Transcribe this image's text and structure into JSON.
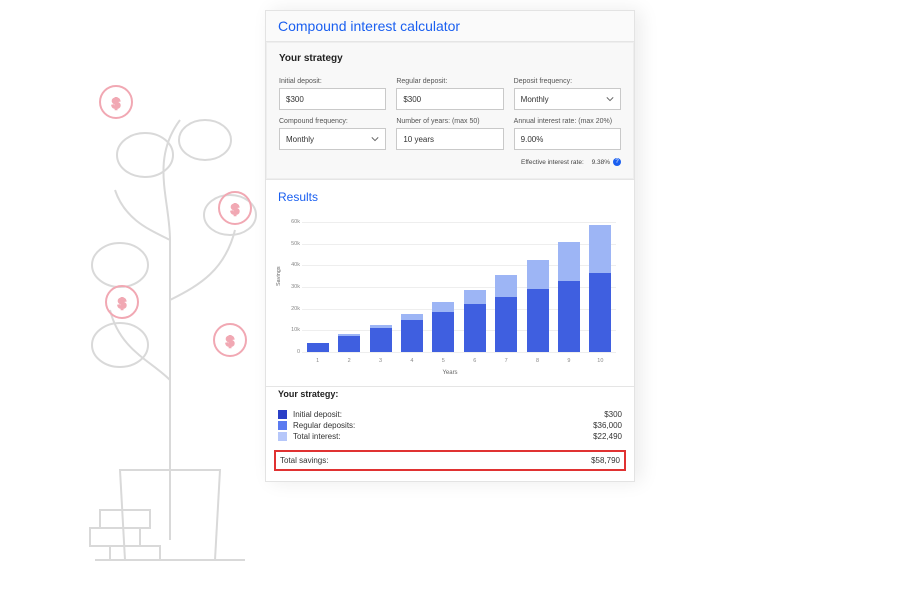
{
  "panel": {
    "title": "Compound interest calculator"
  },
  "strategy": {
    "title": "Your strategy",
    "fields": {
      "initial_deposit": {
        "label": "Initial deposit:",
        "value": "$300"
      },
      "regular_deposit": {
        "label": "Regular deposit:",
        "value": "$300"
      },
      "deposit_frequency": {
        "label": "Deposit frequency:",
        "value": "Monthly",
        "type": "select"
      },
      "compound_frequency": {
        "label": "Compound frequency:",
        "value": "Monthly",
        "type": "select"
      },
      "number_of_years": {
        "label": "Number of years: (max 50)",
        "value": "10 years"
      },
      "annual_interest_rate": {
        "label": "Annual interest rate: (max 20%)",
        "value": "9.00%"
      }
    },
    "effective_rate": {
      "label": "Effective interest rate:",
      "value": "9.38%"
    }
  },
  "results": {
    "title": "Results",
    "chart": {
      "type": "stacked-bar",
      "xaxis_title": "Years",
      "yaxis_title": "Savings",
      "ylim": [
        0,
        60
      ],
      "ytick_step": 10,
      "ytick_labels": [
        "0",
        "10k",
        "20k",
        "30k",
        "40k",
        "50k",
        "60k"
      ],
      "x_categories": [
        "1",
        "2",
        "3",
        "4",
        "5",
        "6",
        "7",
        "8",
        "9",
        "10"
      ],
      "series": [
        {
          "name": "principal",
          "color": "#3f5fe0",
          "values": [
            4.0,
            7.6,
            11.2,
            14.8,
            18.4,
            22.0,
            25.6,
            29.2,
            32.8,
            36.3
          ]
        },
        {
          "name": "interest",
          "color": "#9db5f5",
          "values": [
            0.2,
            0.6,
            1.5,
            2.8,
            4.5,
            6.8,
            9.8,
            13.5,
            18.0,
            22.5
          ]
        }
      ],
      "grid_color": "#eeeeee",
      "background_color": "#ffffff",
      "bar_width_ratio": 0.7,
      "tick_fontsize": 5.5,
      "axis_title_fontsize": 6
    }
  },
  "summary": {
    "title": "Your strategy:",
    "rows": [
      {
        "swatch": "#2a3fc7",
        "label": "Initial deposit:",
        "value": "$300"
      },
      {
        "swatch": "#5a7af0",
        "label": "Regular deposits:",
        "value": "$36,000"
      },
      {
        "swatch": "#b6c7fa",
        "label": "Total interest:",
        "value": "$22,490"
      }
    ],
    "total": {
      "label": "Total savings:",
      "value": "$58,790"
    },
    "highlight_color": "#e03232"
  },
  "colors": {
    "link_blue": "#1a5ff0",
    "text": "#333333",
    "border": "#e3e3e3"
  }
}
